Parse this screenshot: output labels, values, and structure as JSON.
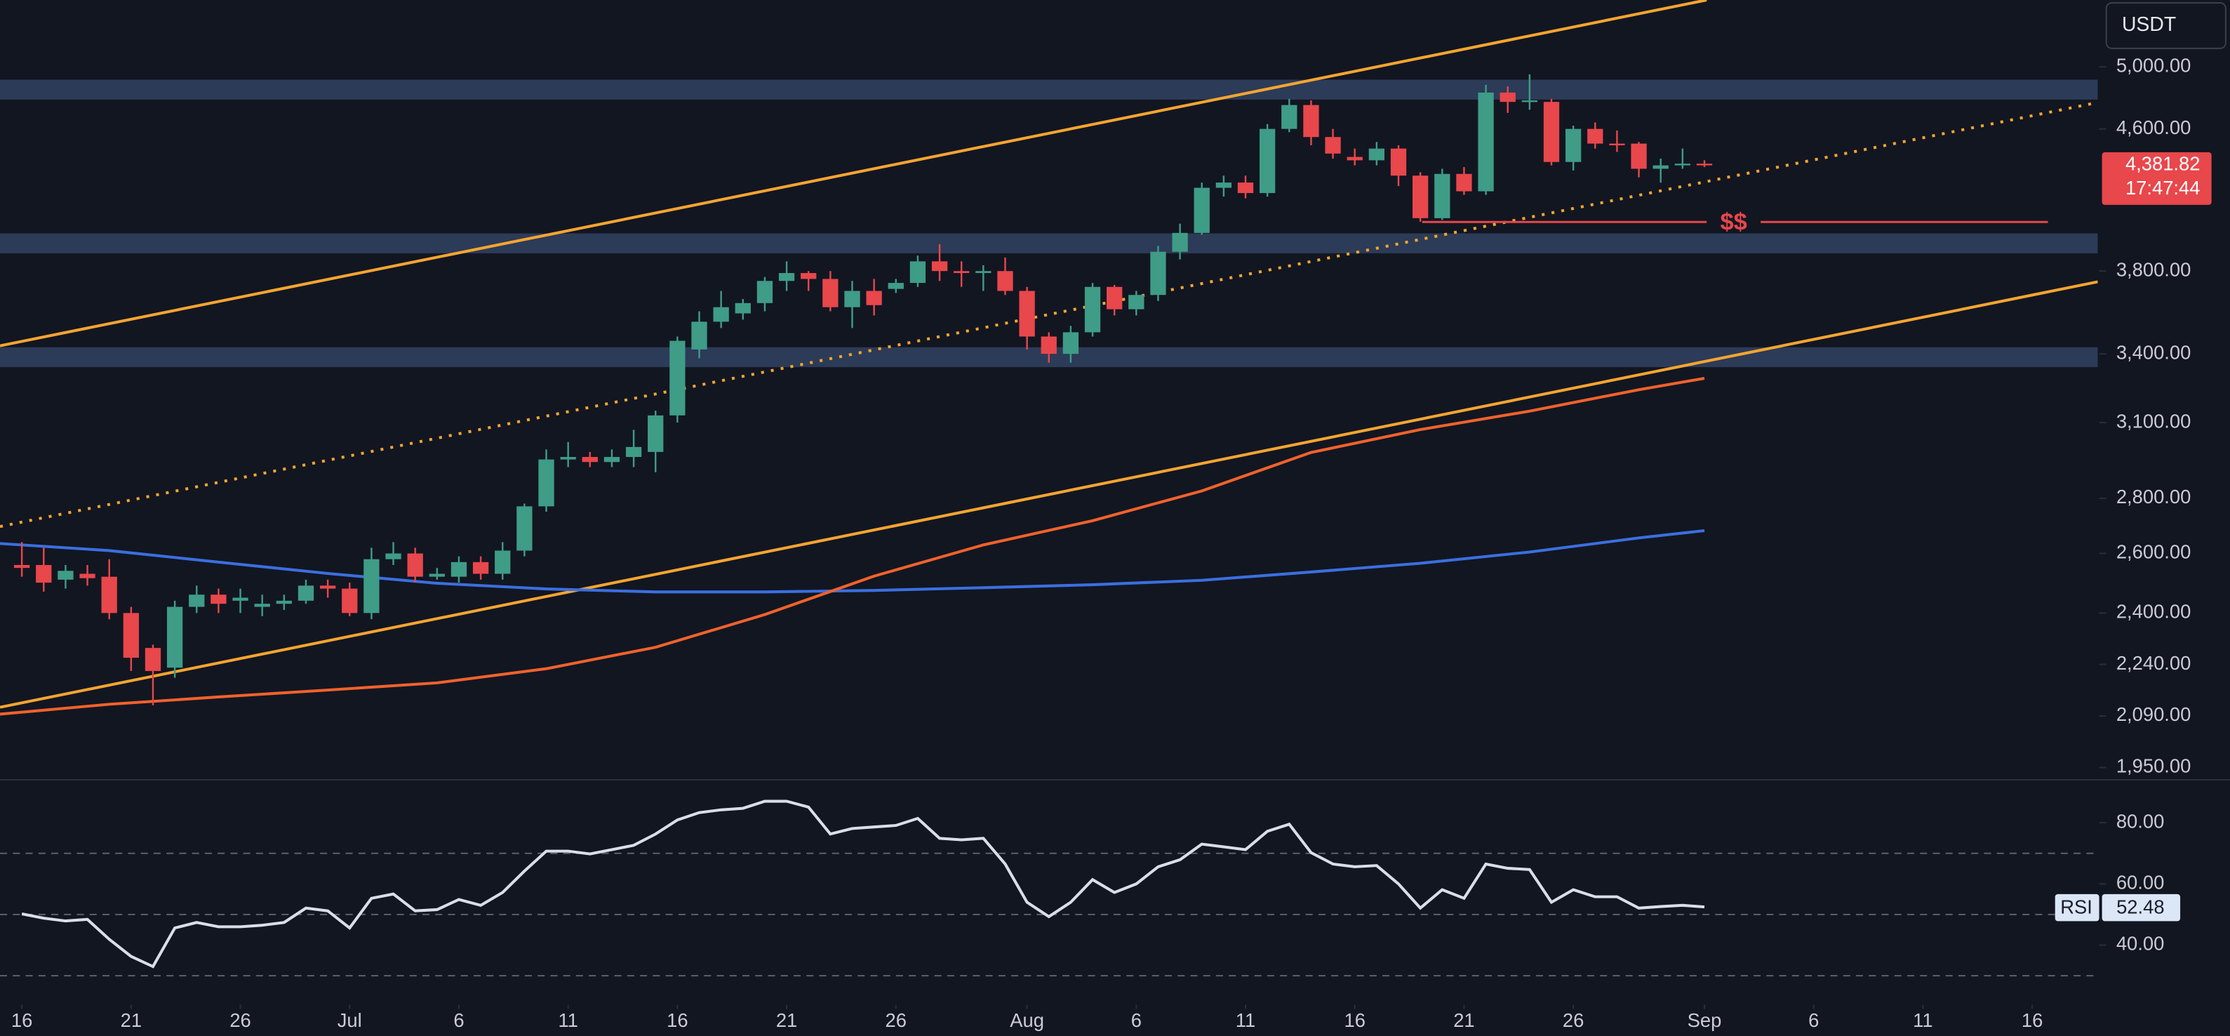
{
  "chart_data": {
    "type": "candlestick",
    "currency": "USDT",
    "log_scale": true,
    "colors": {
      "up": "#3f9c87",
      "down": "#e8474b",
      "background": "#121621"
    },
    "x": [
      "Jun 16",
      "Jun 17",
      "Jun 18",
      "Jun 19",
      "Jun 20",
      "Jun 21",
      "Jun 22",
      "Jun 23",
      "Jun 24",
      "Jun 25",
      "Jun 26",
      "Jun 27",
      "Jun 28",
      "Jun 29",
      "Jun 30",
      "Jul 1",
      "Jul 2",
      "Jul 3",
      "Jul 4",
      "Jul 5",
      "Jul 6",
      "Jul 7",
      "Jul 8",
      "Jul 9",
      "Jul 10",
      "Jul 11",
      "Jul 12",
      "Jul 13",
      "Jul 14",
      "Jul 15",
      "Jul 16",
      "Jul 17",
      "Jul 18",
      "Jul 19",
      "Jul 20",
      "Jul 21",
      "Jul 22",
      "Jul 23",
      "Jul 24",
      "Jul 25",
      "Jul 26",
      "Jul 27",
      "Jul 28",
      "Jul 29",
      "Jul 30",
      "Jul 31",
      "Aug 1",
      "Aug 2",
      "Aug 3",
      "Aug 4",
      "Aug 5",
      "Aug 6",
      "Aug 7",
      "Aug 8",
      "Aug 9",
      "Aug 10",
      "Aug 11",
      "Aug 12",
      "Aug 13",
      "Aug 14",
      "Aug 15",
      "Aug 16",
      "Aug 17",
      "Aug 18",
      "Aug 19",
      "Aug 20",
      "Aug 21",
      "Aug 22",
      "Aug 23",
      "Aug 24",
      "Aug 25",
      "Aug 26",
      "Aug 27",
      "Aug 28",
      "Aug 29",
      "Aug 30",
      "Aug 31",
      "Sep 1"
    ],
    "open": [
      2560,
      2560,
      2510,
      2530,
      2520,
      2400,
      2290,
      2230,
      2420,
      2460,
      2440,
      2420,
      2430,
      2440,
      2490,
      2480,
      2400,
      2580,
      2600,
      2520,
      2520,
      2570,
      2530,
      2610,
      2770,
      2950,
      2960,
      2940,
      2960,
      2980,
      3130,
      3420,
      3550,
      3590,
      3640,
      3750,
      3790,
      3760,
      3620,
      3700,
      3710,
      3740,
      3850,
      3800,
      3790,
      3800,
      3700,
      3480,
      3400,
      3500,
      3720,
      3610,
      3680,
      3900,
      4000,
      4250,
      4280,
      4220,
      4600,
      4750,
      4550,
      4430,
      4410,
      4480,
      4320,
      4080,
      4330,
      4230,
      4830,
      4770,
      4770,
      4400,
      4600,
      4510,
      4510,
      4360,
      4380,
      4390
    ],
    "high": [
      2640,
      2620,
      2560,
      2560,
      2580,
      2420,
      2300,
      2440,
      2490,
      2480,
      2480,
      2460,
      2460,
      2510,
      2510,
      2500,
      2620,
      2640,
      2620,
      2550,
      2590,
      2590,
      2640,
      2780,
      2990,
      3020,
      2980,
      2990,
      3070,
      3150,
      3480,
      3600,
      3700,
      3660,
      3770,
      3850,
      3800,
      3800,
      3750,
      3760,
      3760,
      3880,
      3940,
      3850,
      3830,
      3870,
      3720,
      3500,
      3530,
      3740,
      3730,
      3700,
      3930,
      4050,
      4280,
      4320,
      4320,
      4630,
      4790,
      4780,
      4600,
      4480,
      4520,
      4500,
      4340,
      4360,
      4370,
      4880,
      4870,
      4950,
      4790,
      4620,
      4640,
      4590,
      4520,
      4420,
      4480,
      4410
    ],
    "low": [
      2520,
      2470,
      2480,
      2490,
      2380,
      2220,
      2120,
      2200,
      2400,
      2400,
      2400,
      2390,
      2410,
      2430,
      2450,
      2390,
      2380,
      2560,
      2500,
      2510,
      2500,
      2510,
      2510,
      2590,
      2750,
      2920,
      2920,
      2920,
      2920,
      2900,
      3100,
      3380,
      3520,
      3560,
      3600,
      3700,
      3700,
      3600,
      3520,
      3580,
      3690,
      3720,
      3750,
      3720,
      3700,
      3680,
      3420,
      3360,
      3360,
      3480,
      3580,
      3580,
      3650,
      3860,
      3990,
      4200,
      4190,
      4200,
      4580,
      4500,
      4420,
      4380,
      4380,
      4260,
      4060,
      4070,
      4210,
      4210,
      4700,
      4720,
      4380,
      4350,
      4480,
      4460,
      4310,
      4280,
      4360,
      4370
    ],
    "close": [
      2550,
      2500,
      2540,
      2515,
      2400,
      2260,
      2220,
      2420,
      2460,
      2430,
      2450,
      2430,
      2440,
      2490,
      2480,
      2400,
      2580,
      2600,
      2520,
      2530,
      2570,
      2530,
      2610,
      2770,
      2950,
      2960,
      2940,
      2960,
      3000,
      3130,
      3460,
      3550,
      3620,
      3640,
      3750,
      3790,
      3760,
      3620,
      3700,
      3630,
      3740,
      3850,
      3800,
      3790,
      3800,
      3700,
      3480,
      3400,
      3500,
      3720,
      3610,
      3680,
      3900,
      4000,
      4250,
      4280,
      4220,
      4600,
      4750,
      4550,
      4450,
      4410,
      4480,
      4320,
      4080,
      4330,
      4230,
      4830,
      4770,
      4780,
      4400,
      4600,
      4510,
      4500,
      4360,
      4380,
      4390,
      4381.82
    ],
    "last_price_label": "4,381.82",
    "countdown": "17:47:44",
    "support_marker": "$$",
    "moving_averages": [
      {
        "color": "#3b6fe0",
        "x": [
          "Jun 15",
          "Jun 20",
          "Jun 25",
          "Jun 30",
          "Jul 5",
          "Jul 10",
          "Jul 15",
          "Jul 20",
          "Jul 25",
          "Jul 30",
          "Aug 4",
          "Aug 9",
          "Aug 14",
          "Aug 19",
          "Aug 24",
          "Aug 29",
          "Sep 1"
        ],
        "values": [
          2635,
          2610,
          2570,
          2531,
          2498,
          2479,
          2469,
          2469,
          2474,
          2483,
          2493,
          2508,
          2536,
          2566,
          2605,
          2655,
          2681
        ]
      },
      {
        "color": "#f0622c",
        "x": [
          "Jun 15",
          "Jun 20",
          "Jun 25",
          "Jun 30",
          "Jul 5",
          "Jul 10",
          "Jul 15",
          "Jul 20",
          "Jul 25",
          "Jul 30",
          "Aug 4",
          "Aug 9",
          "Aug 14",
          "Aug 19",
          "Aug 24",
          "Aug 29",
          "Sep 1"
        ],
        "values": [
          2095,
          2123,
          2144,
          2164,
          2185,
          2227,
          2292,
          2395,
          2522,
          2630,
          2717,
          2828,
          2978,
          3071,
          3148,
          3240,
          3290
        ]
      }
    ],
    "xlim": [
      "Jun 15",
      "Sep 19"
    ],
    "xticks": [
      {
        "value": "Jun 16",
        "label": "16"
      },
      {
        "value": "Jun 21",
        "label": "21"
      },
      {
        "value": "Jun 26",
        "label": "26"
      },
      {
        "value": "Jul 1",
        "label": "Jul"
      },
      {
        "value": "Jul 6",
        "label": "6"
      },
      {
        "value": "Jul 11",
        "label": "11"
      },
      {
        "value": "Jul 16",
        "label": "16"
      },
      {
        "value": "Jul 21",
        "label": "21"
      },
      {
        "value": "Jul 26",
        "label": "26"
      },
      {
        "value": "Aug 1",
        "label": "Aug"
      },
      {
        "value": "Aug 6",
        "label": "6"
      },
      {
        "value": "Aug 11",
        "label": "11"
      },
      {
        "value": "Aug 16",
        "label": "16"
      },
      {
        "value": "Aug 21",
        "label": "21"
      },
      {
        "value": "Aug 26",
        "label": "26"
      },
      {
        "value": "Sep 1",
        "label": "Sep"
      },
      {
        "value": "Sep 6",
        "label": "6"
      },
      {
        "value": "Sep 11",
        "label": "11"
      },
      {
        "value": "Sep 16",
        "label": "16"
      }
    ],
    "ylim": [
      1918,
      5470
    ],
    "yticks": [
      {
        "value": 5000,
        "label": "5,000.00"
      },
      {
        "value": 4600,
        "label": "4,600.00"
      },
      {
        "value": 3800,
        "label": "3,800.00"
      },
      {
        "value": 3400,
        "label": "3,400.00"
      },
      {
        "value": 3100,
        "label": "3,100.00"
      },
      {
        "value": 2800,
        "label": "2,800.00"
      },
      {
        "value": 2600,
        "label": "2,600.00"
      },
      {
        "value": 2400,
        "label": "2,400.00"
      },
      {
        "value": 2240,
        "label": "2,240.00"
      },
      {
        "value": 2090,
        "label": "2,090.00"
      },
      {
        "value": 1950,
        "label": "1,950.00"
      }
    ],
    "rsi": {
      "type": "line",
      "name": "RSI",
      "color": "#d8deea",
      "values": [
        50.2,
        48.8,
        47.9,
        48.4,
        41.9,
        36.3,
        33.0,
        45.6,
        47.4,
        46.0,
        46.0,
        46.5,
        47.4,
        52.1,
        51.2,
        45.6,
        55.3,
        56.7,
        51.2,
        51.6,
        54.9,
        53.0,
        57.2,
        64.2,
        70.7,
        70.7,
        69.8,
        71.2,
        72.6,
        76.3,
        80.9,
        83.3,
        84.2,
        84.7,
        87.0,
        87.0,
        85.1,
        76.3,
        78.1,
        78.6,
        79.1,
        81.4,
        74.9,
        74.4,
        74.9,
        66.5,
        54.0,
        49.3,
        54.0,
        61.4,
        57.2,
        60.0,
        65.6,
        67.9,
        73.0,
        72.1,
        71.2,
        77.2,
        79.5,
        70.2,
        66.5,
        65.6,
        66.0,
        60.0,
        52.1,
        58.1,
        55.3,
        66.5,
        65.1,
        64.7,
        54.0,
        58.1,
        55.8,
        55.8,
        52.1,
        52.6,
        53.0,
        52.48
      ],
      "last_value_label": "52.48",
      "ylim": [
        21,
        94
      ],
      "yticks": [
        {
          "value": 80,
          "label": "80.00"
        },
        {
          "value": 60,
          "label": "60.00"
        },
        {
          "value": 40,
          "label": "40.00"
        }
      ],
      "levels": [
        70,
        50,
        30
      ]
    }
  }
}
